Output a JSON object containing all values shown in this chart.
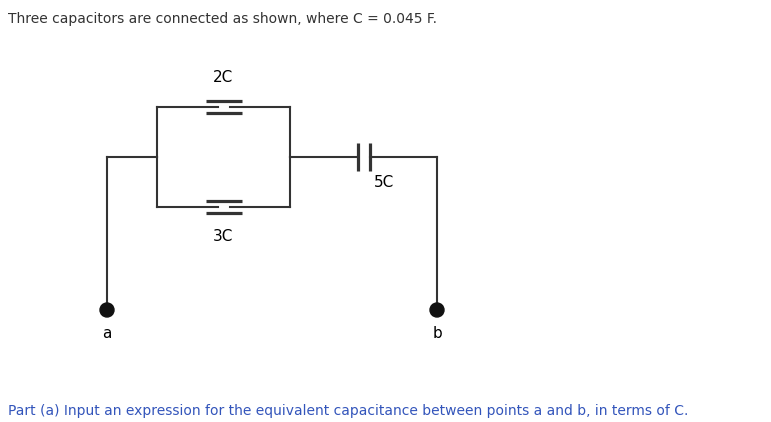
{
  "title_text": "Three capacitors are connected as shown, where C = 0.045 F.",
  "footer_text": "Part (a) Input an expression for the equivalent capacitance between points a and b, in terms of C.",
  "title_color": "#333333",
  "footer_color": "#3355bb",
  "wire_color": "#333333",
  "cap_color": "#333333",
  "dot_color": "#111111",
  "label_2C": "2C",
  "label_3C": "3C",
  "label_5C": "5C",
  "label_a": "a",
  "label_b": "b",
  "fig_width": 7.71,
  "fig_height": 4.22,
  "dpi": 100
}
